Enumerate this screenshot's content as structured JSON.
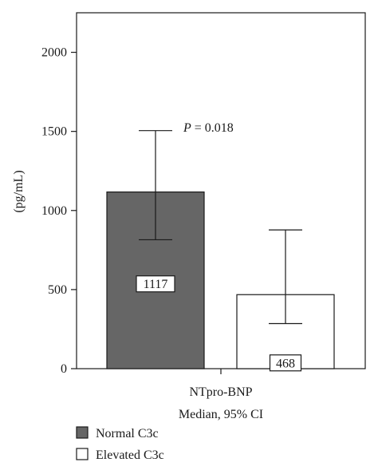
{
  "chart_data": {
    "type": "bar",
    "title": "",
    "ylabel": "(pg/mL)",
    "xlabel": "NTpro-BNP",
    "xlabel_sub": "Median, 95% CI",
    "ylim": [
      0,
      2250
    ],
    "yticks": [
      0,
      500,
      1000,
      1500,
      2000
    ],
    "ytick_labels": [
      "0",
      "500",
      "1000",
      "1500",
      "2000"
    ],
    "grid": false,
    "series": [
      {
        "name": "Normal C3c",
        "value": 1117,
        "value_label": "1117",
        "ci_low": 815,
        "ci_high": 1505,
        "color": "#666666"
      },
      {
        "name": "Elevated C3c",
        "value": 468,
        "value_label": "468",
        "ci_low": 285,
        "ci_high": 877,
        "color": "#ffffff"
      }
    ],
    "annotation": {
      "p_symbol": "P",
      "p_text": " = 0.018"
    },
    "legend": {
      "placement": "bottom-left"
    }
  }
}
